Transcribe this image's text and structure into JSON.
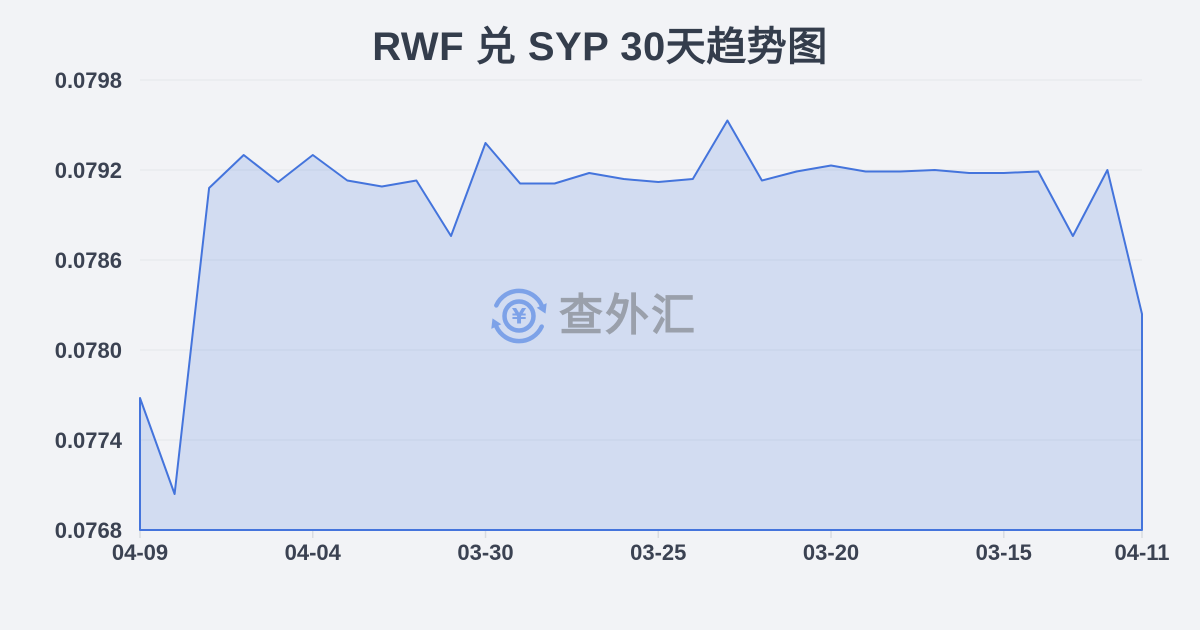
{
  "page": {
    "background_color": "#f2f3f6"
  },
  "chart": {
    "title": "RWF 兑 SYP 30天趋势图",
    "title_color": "#343d4c"
  },
  "watermark": {
    "icon": "yen-exchange-icon",
    "icon_color": "#7da2e8",
    "text": "查外汇",
    "text_color": "#9aa0ab"
  },
  "chart_data": {
    "type": "area",
    "title": "RWF 兑 SYP 30天趋势图",
    "subtitle": "",
    "xlabel": "",
    "ylabel": "",
    "legend": "none",
    "grid": true,
    "ylim": [
      0.0768,
      0.0798
    ],
    "y_ticks": [
      0.0768,
      0.0774,
      0.078,
      0.0786,
      0.0792,
      0.0798
    ],
    "y_tick_labels": [
      "0.0768",
      "0.0774",
      "0.0780",
      "0.0786",
      "0.0792",
      "0.0798"
    ],
    "x_tick_indices": [
      0,
      5,
      10,
      15,
      20,
      25,
      29
    ],
    "x_tick_labels": [
      "04-09",
      "04-04",
      "03-30",
      "03-25",
      "03-20",
      "03-15",
      "04-11"
    ],
    "values": [
      0.07768,
      0.07704,
      0.07908,
      0.0793,
      0.07912,
      0.0793,
      0.07913,
      0.07909,
      0.07913,
      0.07876,
      0.07938,
      0.07911,
      0.07911,
      0.07918,
      0.07914,
      0.07912,
      0.07914,
      0.07953,
      0.07913,
      0.07919,
      0.07923,
      0.07919,
      0.07919,
      0.0792,
      0.07918,
      0.07918,
      0.07919,
      0.07876,
      0.0792,
      0.07824
    ],
    "line_color": "#4474dc",
    "fill_color": "#4474dc",
    "fill_opacity": 0.18,
    "grid_color": "#e4e7eb",
    "tick_color": "#d9dce1",
    "label_color": "#3b4252"
  }
}
